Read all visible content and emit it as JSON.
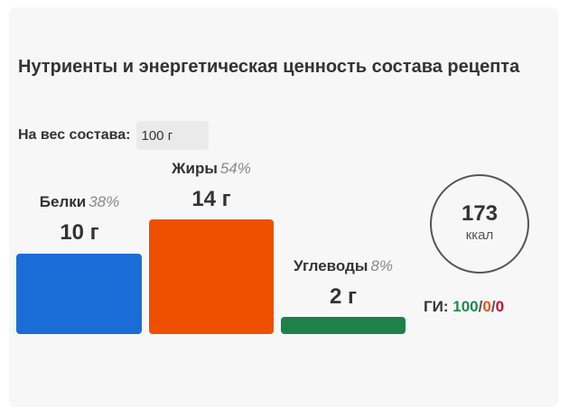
{
  "title": "Нутриенты и энергетическая ценность состава рецепта",
  "weight": {
    "label": "На вес состава:",
    "value": "100 г"
  },
  "nutrients": [
    {
      "name": "Белки",
      "percent": "38%",
      "amount": "10 г",
      "color": "#1a6dd6"
    },
    {
      "name": "Жиры",
      "percent": "54%",
      "amount": "14 г",
      "color": "#ef5000"
    },
    {
      "name": "Углеводы",
      "percent": "8%",
      "amount": "2 г",
      "color": "#1f8048"
    }
  ],
  "energy": {
    "value": "173",
    "unit": "ккал"
  },
  "gi": {
    "label": "ГИ:",
    "values": [
      "100",
      "0",
      "0"
    ],
    "separator": "/",
    "colors": [
      "#1f8a4c",
      "#ef5410",
      "#c8102e"
    ]
  }
}
